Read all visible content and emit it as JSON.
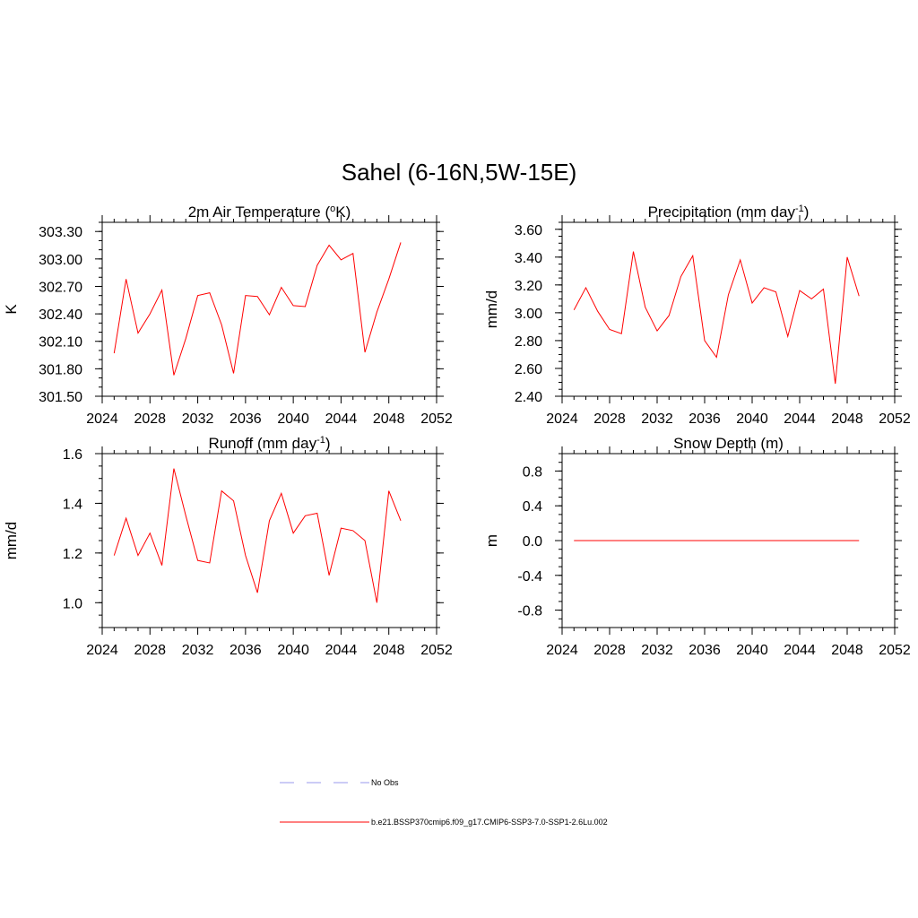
{
  "title": "Sahel (6-16N,5W-15E)",
  "colors": {
    "model": "#ff0000",
    "obs": "#9999ee",
    "axis": "#000000"
  },
  "legend": [
    {
      "label": "No Obs",
      "color": "#9999ee",
      "dash": true
    },
    {
      "label": "b.e21.BSSP370cmip6.f09_g17.CMIP6-SSP3-7.0-SSP1-2.6Lu.002",
      "color": "#ff0000",
      "dash": false
    }
  ],
  "chart_data": [
    {
      "type": "line",
      "title": "2m Air Temperature (",
      "title_sup": "o",
      "title_mid": "K)",
      "title_sup2": "",
      "title_end": "",
      "ylabel": "K",
      "xlim": [
        2024,
        2052
      ],
      "ylim": [
        301.5,
        303.4
      ],
      "xticks": [
        2024,
        2028,
        2032,
        2036,
        2040,
        2044,
        2048,
        2052
      ],
      "yticks": [
        301.5,
        301.8,
        302.1,
        302.4,
        302.7,
        303.0,
        303.3
      ],
      "yticklabels": [
        "301.50",
        "301.80",
        "302.10",
        "302.40",
        "302.70",
        "303.00",
        "303.30"
      ],
      "yminor": 0.1,
      "x": [
        2025,
        2026,
        2027,
        2028,
        2029,
        2030,
        2031,
        2032,
        2033,
        2034,
        2035,
        2036,
        2037,
        2038,
        2039,
        2040,
        2041,
        2042,
        2043,
        2044,
        2045,
        2046,
        2047,
        2048,
        2049
      ],
      "series": [
        {
          "values": [
            301.97,
            302.78,
            302.19,
            302.4,
            302.66,
            301.73,
            302.13,
            302.6,
            302.63,
            302.28,
            301.75,
            302.6,
            302.59,
            302.39,
            302.69,
            302.49,
            302.48,
            302.93,
            303.15,
            302.99,
            303.06,
            301.98,
            302.42,
            302.78,
            303.18
          ]
        }
      ]
    },
    {
      "type": "line",
      "title": "Precipitation (mm day",
      "title_sup": "-1",
      "title_mid": ")",
      "title_sup2": "",
      "title_end": "",
      "ylabel": "mm/d",
      "xlim": [
        2024,
        2052
      ],
      "ylim": [
        2.4,
        3.65
      ],
      "xticks": [
        2024,
        2028,
        2032,
        2036,
        2040,
        2044,
        2048,
        2052
      ],
      "yticks": [
        2.4,
        2.6,
        2.8,
        3.0,
        3.2,
        3.4,
        3.6
      ],
      "yticklabels": [
        "2.40",
        "2.60",
        "2.80",
        "3.00",
        "3.20",
        "3.40",
        "3.60"
      ],
      "yminor": 0.05,
      "x": [
        2025,
        2026,
        2027,
        2028,
        2029,
        2030,
        2031,
        2032,
        2033,
        2034,
        2035,
        2036,
        2037,
        2038,
        2039,
        2040,
        2041,
        2042,
        2043,
        2044,
        2045,
        2046,
        2047,
        2048,
        2049
      ],
      "series": [
        {
          "values": [
            3.02,
            3.18,
            3.01,
            2.88,
            2.85,
            3.44,
            3.04,
            2.87,
            2.98,
            3.26,
            3.41,
            2.8,
            2.68,
            3.13,
            3.38,
            3.07,
            3.18,
            3.15,
            2.83,
            3.16,
            3.1,
            3.17,
            2.49,
            3.4,
            3.12
          ]
        }
      ]
    },
    {
      "type": "line",
      "title": "Runoff (mm day",
      "title_sup": "-1",
      "title_mid": ")",
      "title_sup2": "",
      "title_end": "",
      "ylabel": "mm/d",
      "xlim": [
        2024,
        2052
      ],
      "ylim": [
        0.9,
        1.6
      ],
      "xticks": [
        2024,
        2028,
        2032,
        2036,
        2040,
        2044,
        2048,
        2052
      ],
      "yticks": [
        1.0,
        1.2,
        1.4,
        1.6
      ],
      "yticklabels": [
        "1.0",
        "1.2",
        "1.4",
        "1.6"
      ],
      "yminor": 0.05,
      "x": [
        2025,
        2026,
        2027,
        2028,
        2029,
        2030,
        2031,
        2032,
        2033,
        2034,
        2035,
        2036,
        2037,
        2038,
        2039,
        2040,
        2041,
        2042,
        2043,
        2044,
        2045,
        2046,
        2047,
        2048,
        2049
      ],
      "series": [
        {
          "values": [
            1.19,
            1.34,
            1.19,
            1.28,
            1.15,
            1.54,
            1.35,
            1.17,
            1.16,
            1.45,
            1.41,
            1.19,
            1.04,
            1.33,
            1.44,
            1.28,
            1.35,
            1.36,
            1.11,
            1.3,
            1.29,
            1.25,
            1.0,
            1.45,
            1.33
          ]
        }
      ]
    },
    {
      "type": "line",
      "title": "Snow Depth (m)",
      "title_sup": "",
      "title_mid": "",
      "title_sup2": "",
      "title_end": "",
      "ylabel": "m",
      "xlim": [
        2024,
        2052
      ],
      "ylim": [
        -1.0,
        1.0
      ],
      "xticks": [
        2024,
        2028,
        2032,
        2036,
        2040,
        2044,
        2048,
        2052
      ],
      "yticks": [
        -0.8,
        -0.4,
        0.0,
        0.4,
        0.8
      ],
      "yticklabels": [
        "-0.8",
        "-0.4",
        "0.0",
        "0.4",
        "0.8"
      ],
      "yminor": 0.1,
      "x": [
        2025,
        2026,
        2027,
        2028,
        2029,
        2030,
        2031,
        2032,
        2033,
        2034,
        2035,
        2036,
        2037,
        2038,
        2039,
        2040,
        2041,
        2042,
        2043,
        2044,
        2045,
        2046,
        2047,
        2048,
        2049
      ],
      "series": [
        {
          "values": [
            0,
            0,
            0,
            0,
            0,
            0,
            0,
            0,
            0,
            0,
            0,
            0,
            0,
            0,
            0,
            0,
            0,
            0,
            0,
            0,
            0,
            0,
            0,
            0,
            0
          ]
        }
      ]
    }
  ]
}
